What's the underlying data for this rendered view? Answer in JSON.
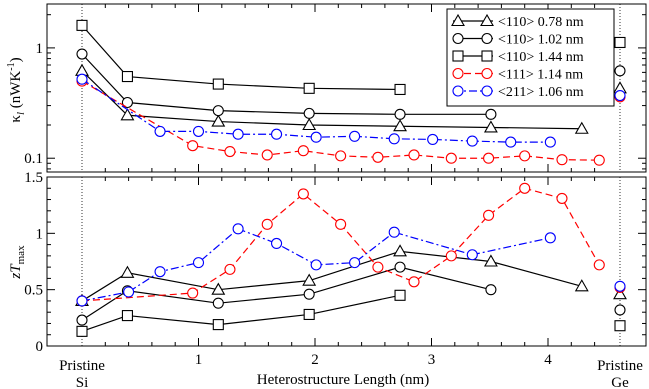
{
  "figure": {
    "x_axis_label": "Heterostructure Length (nm)",
    "x_ticks": [
      "1",
      "2",
      "3",
      "4"
    ],
    "end_labels": {
      "left_line1": "Pristine",
      "left_line2": "Si",
      "right_line1": "Pristine",
      "right_line2": "Ge"
    }
  },
  "chart_data": [
    {
      "type": "line",
      "panel": "top",
      "ylabel": "κ_l (nWK⁻¹)",
      "ylabel_main": "κ",
      "ylabel_sub": "l",
      "ylabel_unit": " (nWK",
      "ylabel_sup": "-1",
      "ylabel_close": ")",
      "xlim": [
        -0.3,
        4.6
      ],
      "ylim": [
        0.075,
        2.5
      ],
      "y_scale": "log",
      "y_ticks": [
        {
          "value": 0.1,
          "label": "0.1"
        },
        {
          "value": 1,
          "label": "1"
        }
      ],
      "legend_position": "top-right",
      "legend": [
        {
          "label": "<110> 0.78 nm",
          "marker": "triangle",
          "color": "#000000",
          "dash": "solid"
        },
        {
          "label": "<110> 1.02 nm",
          "marker": "circle",
          "color": "#000000",
          "dash": "solid"
        },
        {
          "label": "<110> 1.44 nm",
          "marker": "square",
          "color": "#000000",
          "dash": "solid"
        },
        {
          "label": "<111> 1.14 nm",
          "marker": "circle",
          "color": "#ff0000",
          "dash": "dashed"
        },
        {
          "label": "<211> 1.06 nm",
          "marker": "circle",
          "color": "#0000ff",
          "dash": "dashdot"
        }
      ],
      "series": [
        {
          "name": "<110> 0.78 nm",
          "marker": "triangle",
          "color": "#000000",
          "dash": "solid",
          "x": [
            0,
            0.39,
            1.17,
            1.95,
            2.73,
            3.51,
            4.29
          ],
          "y": [
            0.62,
            0.245,
            0.215,
            0.2,
            0.195,
            0.19,
            0.185
          ],
          "pristine_si": 0.62,
          "pristine_ge": 0.43
        },
        {
          "name": "<110> 1.02 nm",
          "marker": "circle",
          "color": "#000000",
          "dash": "solid",
          "x": [
            0,
            0.39,
            1.17,
            1.95,
            2.73,
            3.51
          ],
          "y": [
            0.88,
            0.32,
            0.27,
            0.255,
            0.25,
            0.25
          ],
          "pristine_si": 0.88,
          "pristine_ge": 0.62
        },
        {
          "name": "<110> 1.44 nm",
          "marker": "square",
          "color": "#000000",
          "dash": "solid",
          "x": [
            0,
            0.39,
            1.17,
            1.95,
            2.73
          ],
          "y": [
            1.6,
            0.55,
            0.47,
            0.43,
            0.42
          ],
          "pristine_si": 1.6,
          "pristine_ge": 1.12
        },
        {
          "name": "<111> 1.14 nm",
          "marker": "circle",
          "color": "#ff0000",
          "dash": "dashed",
          "x": [
            0,
            0.95,
            1.27,
            1.59,
            1.9,
            2.22,
            2.54,
            2.85,
            3.17,
            3.49,
            3.8,
            4.12,
            4.44
          ],
          "y": [
            0.5,
            0.13,
            0.115,
            0.107,
            0.117,
            0.105,
            0.102,
            0.107,
            0.1,
            0.1,
            0.105,
            0.097,
            0.096
          ],
          "pristine_si": 0.5,
          "pristine_ge": 0.36
        },
        {
          "name": "<211> 1.06 nm",
          "marker": "circle",
          "color": "#0000ff",
          "dash": "dashdot",
          "x": [
            0,
            0.67,
            1.0,
            1.34,
            1.67,
            2.01,
            2.34,
            2.68,
            3.01,
            3.35,
            3.68,
            4.02
          ],
          "y": [
            0.52,
            0.175,
            0.175,
            0.165,
            0.165,
            0.155,
            0.158,
            0.15,
            0.148,
            0.143,
            0.14,
            0.14
          ],
          "pristine_si": 0.52,
          "pristine_ge": 0.37
        }
      ]
    },
    {
      "type": "line",
      "panel": "bottom",
      "ylabel": "zT_max",
      "ylabel_main": "zT",
      "ylabel_sub": "max",
      "xlim": [
        -0.3,
        4.6
      ],
      "ylim": [
        0,
        1.5
      ],
      "y_scale": "linear",
      "y_ticks": [
        {
          "value": 0,
          "label": "0"
        },
        {
          "value": 0.5,
          "label": "0.5"
        },
        {
          "value": 1,
          "label": "1"
        },
        {
          "value": 1.5,
          "label": "1.5"
        }
      ],
      "series": [
        {
          "name": "<110> 0.78 nm",
          "marker": "triangle",
          "color": "#000000",
          "dash": "solid",
          "x": [
            0,
            0.39,
            1.17,
            1.95,
            2.73,
            3.51,
            4.29
          ],
          "y": [
            0.4,
            0.65,
            0.5,
            0.58,
            0.84,
            0.75,
            0.53
          ],
          "pristine_si": 0.4,
          "pristine_ge": 0.46
        },
        {
          "name": "<110> 1.02 nm",
          "marker": "circle",
          "color": "#000000",
          "dash": "solid",
          "x": [
            0,
            0.39,
            1.17,
            1.95,
            2.73,
            3.51
          ],
          "y": [
            0.23,
            0.49,
            0.38,
            0.46,
            0.7,
            0.5
          ],
          "pristine_si": 0.23,
          "pristine_ge": 0.32
        },
        {
          "name": "<110> 1.44 nm",
          "marker": "square",
          "color": "#000000",
          "dash": "solid",
          "x": [
            0,
            0.39,
            1.17,
            1.95,
            2.73
          ],
          "y": [
            0.13,
            0.27,
            0.19,
            0.28,
            0.45
          ],
          "pristine_si": 0.13,
          "pristine_ge": 0.18
        },
        {
          "name": "<111> 1.14 nm",
          "marker": "circle",
          "color": "#ff0000",
          "dash": "dashed",
          "x": [
            0,
            0.95,
            1.27,
            1.59,
            1.9,
            2.22,
            2.54,
            2.85,
            3.17,
            3.49,
            3.8,
            4.12,
            4.44
          ],
          "y": [
            0.4,
            0.47,
            0.68,
            1.08,
            1.35,
            1.08,
            0.7,
            0.57,
            0.8,
            1.16,
            1.4,
            1.31,
            0.72
          ],
          "pristine_si": 0.4,
          "pristine_ge": 0.52
        },
        {
          "name": "<211> 1.06 nm",
          "marker": "circle",
          "color": "#0000ff",
          "dash": "dashdot",
          "x": [
            0,
            0.4,
            0.67,
            1.0,
            1.34,
            1.67,
            2.01,
            2.34,
            2.68,
            3.35,
            4.02
          ],
          "y": [
            0.4,
            0.48,
            0.66,
            0.74,
            1.04,
            0.91,
            0.72,
            0.74,
            1.01,
            0.81,
            0.96
          ],
          "pristine_si": 0.4,
          "pristine_ge": 0.53
        }
      ]
    }
  ]
}
